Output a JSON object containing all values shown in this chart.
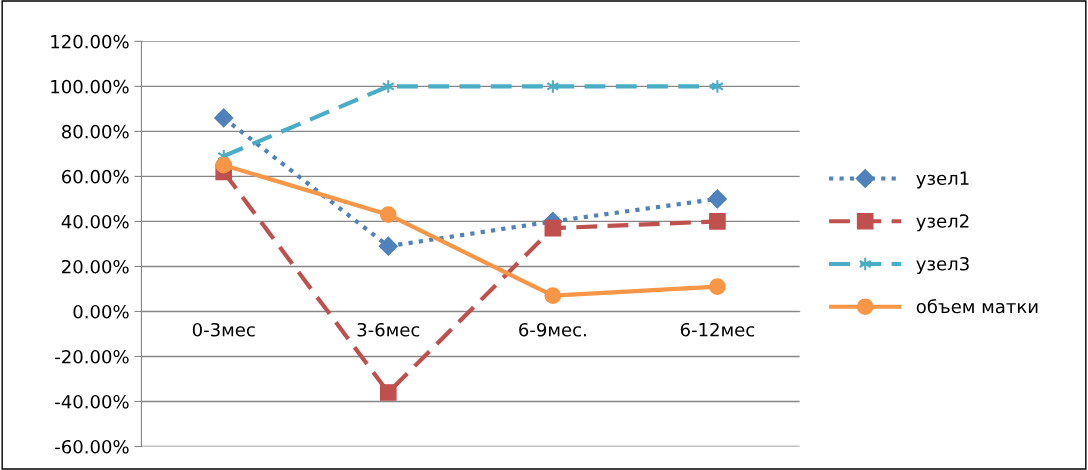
{
  "chart_data": {
    "type": "line",
    "categories": [
      "0-3мес",
      "3-6мес",
      "6-9мес.",
      "6-12мес"
    ],
    "series": [
      {
        "name": "узел1",
        "color": "#4f81bd",
        "values": [
          86,
          29,
          40,
          50
        ],
        "marker": "diamond",
        "line_style": "dotted"
      },
      {
        "name": "узел2",
        "color": "#c0504d",
        "values": [
          62,
          -36,
          37,
          40
        ],
        "marker": "square",
        "line_style": "dashed"
      },
      {
        "name": "узел3",
        "color": "#4bacc6",
        "values": [
          69,
          100,
          100,
          100
        ],
        "marker": "cross",
        "line_style": "dashed"
      },
      {
        "name": "объем матки",
        "color": "#f79646",
        "values": [
          65,
          43,
          7,
          11
        ],
        "marker": "circle",
        "line_style": "solid"
      }
    ],
    "ylim": [
      -60,
      120
    ],
    "yticks": [
      {
        "value": -60,
        "label": "-60.00%"
      },
      {
        "value": -40,
        "label": "-40.00%"
      },
      {
        "value": -20,
        "label": "-20.00%"
      },
      {
        "value": 0,
        "label": "0.00%"
      },
      {
        "value": 20,
        "label": "20.00%"
      },
      {
        "value": 40,
        "label": "40.00%"
      },
      {
        "value": 60,
        "label": "60.00%"
      },
      {
        "value": 80,
        "label": "80.00%"
      },
      {
        "value": 100,
        "label": "100.00%"
      },
      {
        "value": 120,
        "label": "120.00%"
      }
    ],
    "grid": "y",
    "legend": "right"
  }
}
